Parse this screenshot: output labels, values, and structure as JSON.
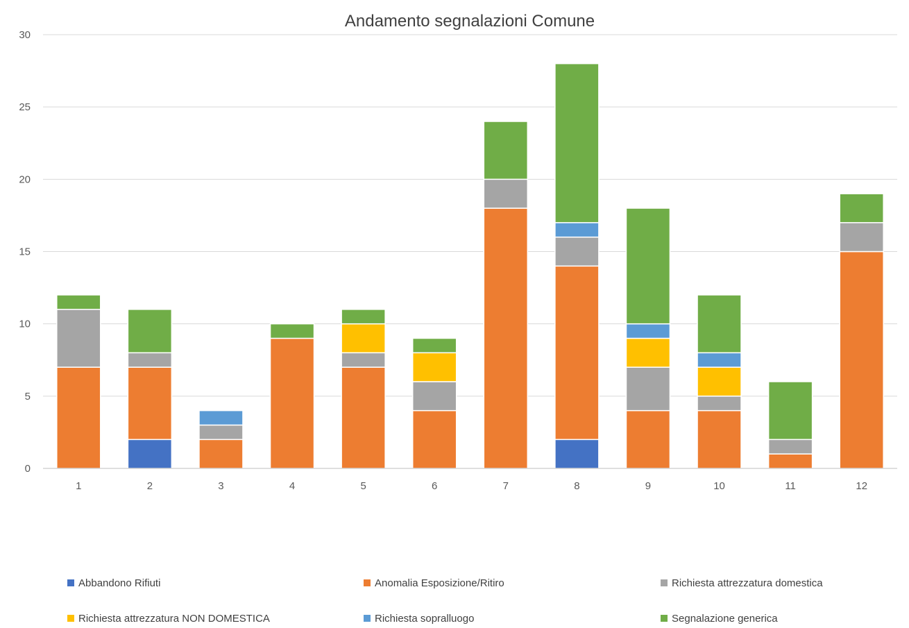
{
  "chart_data": {
    "type": "bar",
    "stacked": true,
    "title": "Andamento segnalazioni Comune",
    "xlabel": "",
    "ylabel": "",
    "ylim": [
      0,
      30
    ],
    "y_ticks": [
      0,
      5,
      10,
      15,
      20,
      25,
      30
    ],
    "grid": true,
    "legend_position": "bottom",
    "categories": [
      "1",
      "2",
      "3",
      "4",
      "5",
      "6",
      "7",
      "8",
      "9",
      "10",
      "11",
      "12"
    ],
    "series": [
      {
        "name": "Abbandono Rifiuti",
        "color": "#4472c4",
        "values": [
          0,
          2,
          0,
          0,
          0,
          0,
          0,
          2,
          0,
          0,
          0,
          0
        ]
      },
      {
        "name": "Anomalia Esposizione/Ritiro",
        "color": "#ed7d31",
        "values": [
          7,
          5,
          2,
          9,
          7,
          4,
          18,
          12,
          4,
          4,
          1,
          15
        ]
      },
      {
        "name": "Richiesta attrezzatura domestica",
        "color": "#a5a5a5",
        "values": [
          4,
          1,
          1,
          0,
          1,
          2,
          2,
          2,
          3,
          1,
          1,
          2
        ]
      },
      {
        "name": "Richiesta attrezzatura NON DOMESTICA",
        "color": "#ffc000",
        "values": [
          0,
          0,
          0,
          0,
          2,
          2,
          0,
          0,
          2,
          2,
          0,
          0
        ]
      },
      {
        "name": "Richiesta sopralluogo",
        "color": "#5b9bd5",
        "values": [
          0,
          0,
          1,
          0,
          0,
          0,
          0,
          1,
          1,
          1,
          0,
          0
        ]
      },
      {
        "name": "Segnalazione generica",
        "color": "#70ad47",
        "values": [
          1,
          3,
          0,
          1,
          1,
          1,
          4,
          11,
          8,
          4,
          4,
          2
        ]
      }
    ]
  }
}
